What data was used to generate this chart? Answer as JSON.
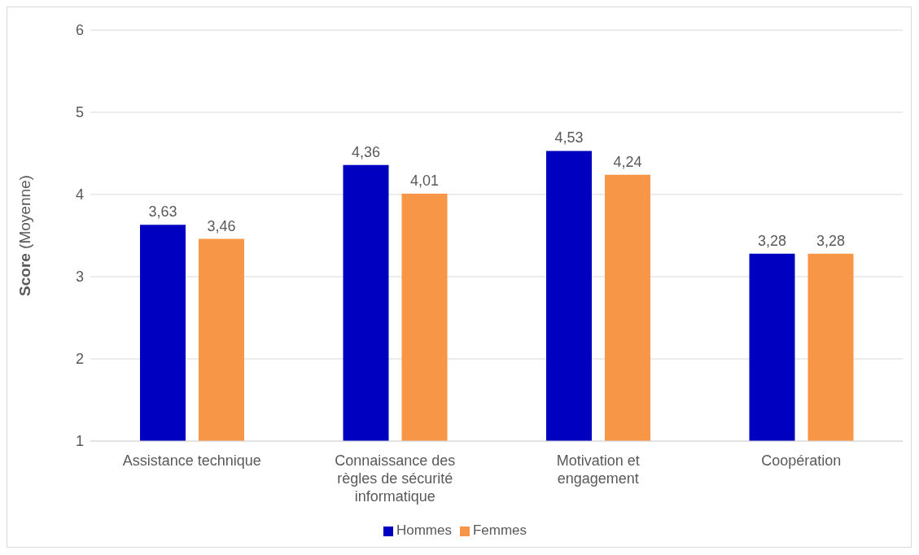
{
  "chart_data": {
    "type": "bar",
    "ylabel": "Score (Moyenne)",
    "categories": [
      "Assistance technique",
      "Connaissance des règles de sécurité informatique",
      "Motivation et engagement",
      "Coopération"
    ],
    "series": [
      {
        "name": "Hommes",
        "color": "#0000c0",
        "values": [
          3.63,
          4.36,
          4.53,
          3.28
        ],
        "value_labels": [
          "3,63",
          "4,36",
          "4,53",
          "3,28"
        ]
      },
      {
        "name": "Femmes",
        "color": "#f79646",
        "values": [
          3.46,
          4.01,
          4.24,
          3.28
        ],
        "value_labels": [
          "3,46",
          "4,01",
          "4,24",
          "3,28"
        ]
      }
    ],
    "ylim": [
      1,
      6
    ],
    "yticks": [
      1,
      2,
      3,
      4,
      5,
      6
    ],
    "grid": "y",
    "legend": "bottom"
  }
}
